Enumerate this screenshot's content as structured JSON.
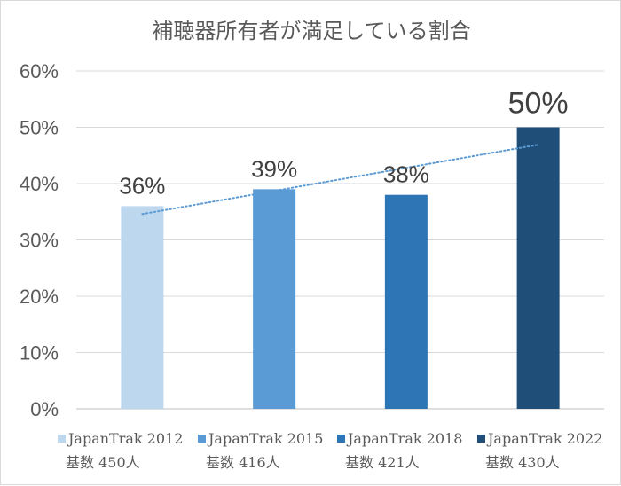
{
  "chart_data": {
    "type": "bar",
    "title": "補聴器所有者が満足している割合",
    "categories": [
      [
        "JapanTrak 2012",
        "基数 450人"
      ],
      [
        "JapanTrak 2015",
        "基数 416人"
      ],
      [
        "JapanTrak 2018",
        "基数 421人"
      ],
      [
        "JapanTrak 2022",
        "基数 430人"
      ]
    ],
    "values": [
      36,
      39,
      38,
      50
    ],
    "data_labels": [
      "36%",
      "39%",
      "38%",
      "50%"
    ],
    "colors": [
      "#bdd7ee",
      "#5b9bd5",
      "#2e75b6",
      "#1f4e79"
    ],
    "ylim": [
      0,
      60
    ],
    "yticks": [
      "0%",
      "10%",
      "20%",
      "30%",
      "40%",
      "50%",
      "60%"
    ],
    "grid": true,
    "trendline": {
      "style": "dotted",
      "color": "#5b9bd5",
      "type": "linear"
    },
    "legend_position": "bottom"
  }
}
